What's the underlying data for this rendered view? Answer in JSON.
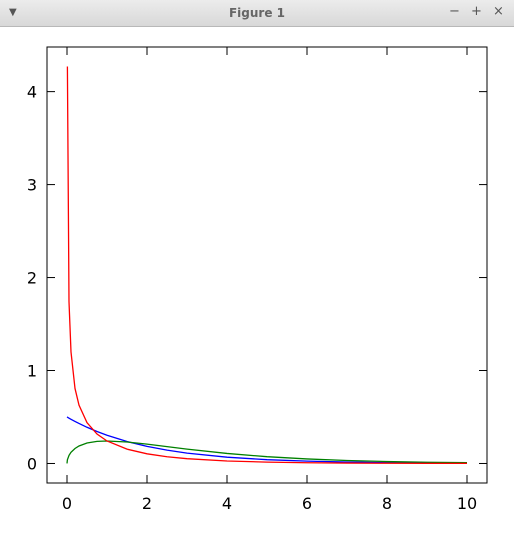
{
  "window": {
    "title": "Figure 1"
  },
  "chart_data": {
    "type": "line",
    "x": [
      0,
      0.01,
      0.05,
      0.1,
      0.2,
      0.3,
      0.5,
      0.75,
      1,
      1.5,
      2,
      2.5,
      3,
      4,
      5,
      6,
      7,
      8,
      9,
      10
    ],
    "series": [
      {
        "color": "#0000ff",
        "values": [
          0.5,
          0.4975,
          0.4877,
          0.4756,
          0.4524,
          0.4304,
          0.3894,
          0.3437,
          0.3033,
          0.2362,
          0.1839,
          0.1433,
          0.1116,
          0.0677,
          0.041,
          0.0249,
          0.0151,
          0.0092,
          0.0056,
          0.0034
        ]
      },
      {
        "color": "#008000",
        "values": [
          0,
          0.0397,
          0.087,
          0.12,
          0.161,
          0.188,
          0.22,
          0.238,
          0.242,
          0.231,
          0.208,
          0.181,
          0.154,
          0.108,
          0.073,
          0.0486,
          0.0322,
          0.0208,
          0.0135,
          0.0085
        ]
      },
      {
        "color": "#ff0000",
        "values": [
          null,
          4.27,
          1.74,
          1.2,
          0.807,
          0.627,
          0.439,
          0.317,
          0.242,
          0.154,
          0.104,
          0.0723,
          0.0514,
          0.027,
          0.0146,
          0.0081,
          0.0046,
          0.0026,
          0.0015,
          0.00085
        ]
      }
    ],
    "xlim": [
      -0.5,
      10.5
    ],
    "ylim": [
      -0.21,
      4.48
    ],
    "xticks": [
      0,
      2,
      4,
      6,
      8,
      10
    ],
    "yticks": [
      0,
      1,
      2,
      3,
      4
    ]
  }
}
